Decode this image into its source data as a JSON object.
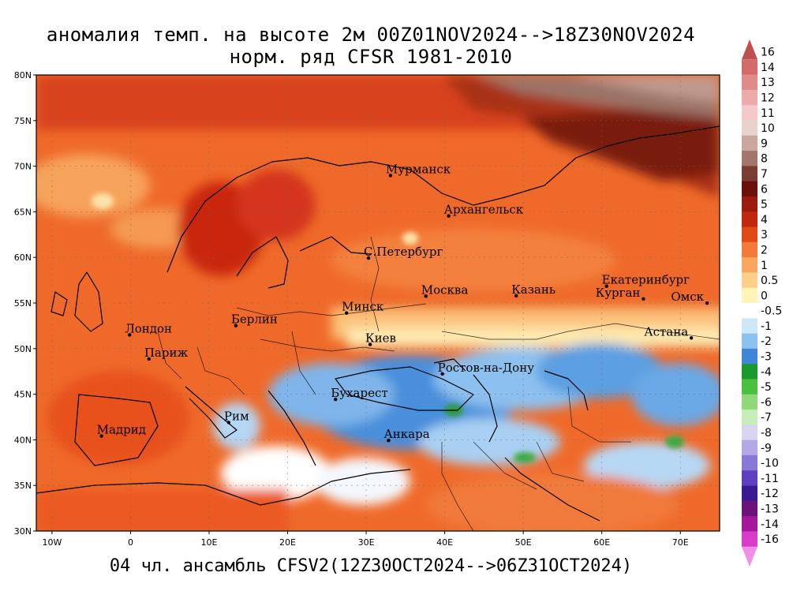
{
  "title_line1": "аномалия темп. на высоте 2м 00Z01NOV2024-->18Z30NOV2024",
  "title_line2": "норм. ряд CFSR 1981-2010",
  "footer": "04 чл. ансамбль CFSV2(12Z30OCT2024-->06Z31OCT2024)",
  "lat_ticks": [
    "80N",
    "75N",
    "70N",
    "65N",
    "60N",
    "55N",
    "50N",
    "45N",
    "40N",
    "35N",
    "30N"
  ],
  "lon_ticks": [
    "10W",
    "0",
    "10E",
    "20E",
    "30E",
    "40E",
    "50E",
    "60E",
    "70E"
  ],
  "cities": [
    {
      "name": "Мурманск",
      "lon": 33.1,
      "lat": 68.97
    },
    {
      "name": "Архангельск",
      "lon": 40.5,
      "lat": 64.54
    },
    {
      "name": "С.Петербург",
      "lon": 30.3,
      "lat": 59.93
    },
    {
      "name": "Москва",
      "lon": 37.6,
      "lat": 55.75
    },
    {
      "name": "Казань",
      "lon": 49.1,
      "lat": 55.79
    },
    {
      "name": "Екатеринбург",
      "lon": 60.6,
      "lat": 56.84
    },
    {
      "name": "Курган",
      "lon": 65.3,
      "lat": 55.45
    },
    {
      "name": "Омск",
      "lon": 73.4,
      "lat": 54.99
    },
    {
      "name": "Астана",
      "lon": 71.4,
      "lat": 51.17
    },
    {
      "name": "Минск",
      "lon": 27.5,
      "lat": 53.9
    },
    {
      "name": "Берлин",
      "lon": 13.4,
      "lat": 52.52
    },
    {
      "name": "Лондон",
      "lon": -0.12,
      "lat": 51.5
    },
    {
      "name": "Париж",
      "lon": 2.35,
      "lat": 48.86
    },
    {
      "name": "Киев",
      "lon": 30.5,
      "lat": 50.45
    },
    {
      "name": "Ростов-на-Дону",
      "lon": 39.7,
      "lat": 47.23
    },
    {
      "name": "Бухарест",
      "lon": 26.1,
      "lat": 44.43
    },
    {
      "name": "Рим",
      "lon": 12.5,
      "lat": 41.9
    },
    {
      "name": "Мадрид",
      "lon": -3.7,
      "lat": 40.42
    },
    {
      "name": "Анкара",
      "lon": 32.85,
      "lat": 39.93
    }
  ],
  "colorbar": {
    "labels": [
      "16",
      "14",
      "13",
      "12",
      "11",
      "10",
      "9",
      "8",
      "7",
      "6",
      "5",
      "4",
      "3",
      "2",
      "1",
      "0.5",
      "0",
      "-0.5",
      "-1",
      "-2",
      "-3",
      "-4",
      "-5",
      "-6",
      "-7",
      "-8",
      "-9",
      "-10",
      "-11",
      "-12",
      "-13",
      "-14",
      "-16"
    ],
    "colors": [
      "#c0504d",
      "#d46b6b",
      "#e08a8a",
      "#ecaaaa",
      "#f5c9c9",
      "#e8d2cc",
      "#c9a79d",
      "#a4756a",
      "#7a3d34",
      "#6b0f0c",
      "#9c1a0e",
      "#c1260f",
      "#e04a17",
      "#f47a3c",
      "#f9a760",
      "#fcd08a",
      "#fff3b8",
      "#ffffff",
      "#cfe8f7",
      "#8cc2ee",
      "#3f86d8",
      "#1a9a2e",
      "#4bbf3e",
      "#8fd97a",
      "#c7edb8",
      "#d9d4f0",
      "#b4a8e6",
      "#8a78d6",
      "#5d3fbf",
      "#3a1a90",
      "#6a1378",
      "#a3199c",
      "#d93cc8",
      "#f08ee8"
    ]
  }
}
